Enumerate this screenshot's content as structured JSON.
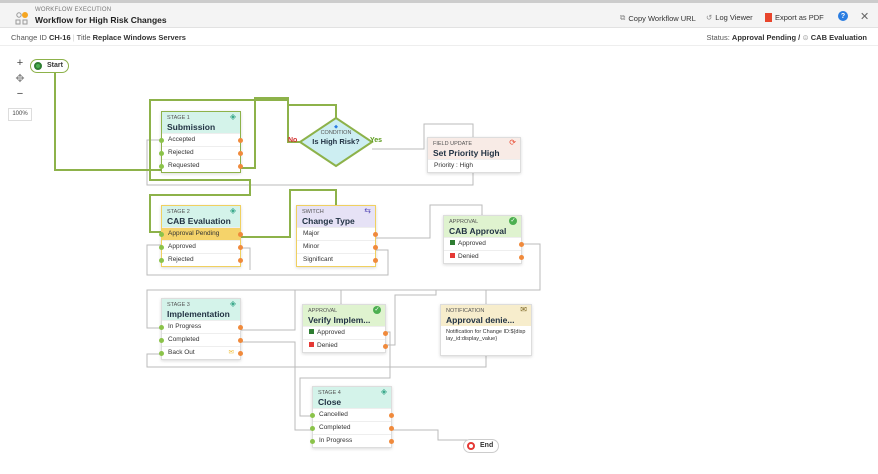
{
  "header": {
    "subtitle": "WORKFLOW EXECUTION",
    "title": "Workflow for High Risk Changes",
    "actions": [
      {
        "label": "Copy Workflow URL",
        "icon": "copy-icon"
      },
      {
        "label": "Log Viewer",
        "icon": "history-icon"
      },
      {
        "label": "Export as PDF",
        "icon": "pdf-icon"
      }
    ],
    "help_icon": "?",
    "close_icon": "✕"
  },
  "info": {
    "change_id_label": "Change ID",
    "change_id": "CH-16",
    "title_label": "Title",
    "title": "Replace Windows Servers",
    "status_label": "Status:",
    "status": "Approval Pending /",
    "stage": "CAB Evaluation"
  },
  "zoom": {
    "in": "+",
    "center": "✥",
    "out": "−",
    "level": "100%"
  },
  "nodes": {
    "start": "Start",
    "end": "End",
    "stage1": {
      "kind": "STAGE 1",
      "name": "Submission",
      "rows": [
        "Accepted",
        "Rejected",
        "Requested"
      ]
    },
    "condition": {
      "kind": "CONDITION",
      "name": "Is High Risk?",
      "no": "No",
      "yes": "Yes"
    },
    "field_update": {
      "kind": "FIELD UPDATE",
      "name": "Set Priority High",
      "detail": "Priority : High"
    },
    "stage2": {
      "kind": "STAGE 2",
      "name": "CAB Evaluation",
      "rows": [
        "Approval Pending",
        "Approved",
        "Rejected"
      ]
    },
    "switch": {
      "kind": "SWITCH",
      "name": "Change Type",
      "rows": [
        "Major",
        "Minor",
        "Significant"
      ]
    },
    "cab_approval": {
      "kind": "APPROVAL",
      "name": "CAB Approval",
      "rows": [
        "Approved",
        "Denied"
      ]
    },
    "stage3": {
      "kind": "STAGE 3",
      "name": "Implementation",
      "rows": [
        "In Progress",
        "Completed",
        "Back Out"
      ]
    },
    "verify": {
      "kind": "APPROVAL",
      "name": "Verify Implem...",
      "rows": [
        "Approved",
        "Denied"
      ]
    },
    "notification": {
      "kind": "NOTIFICATION",
      "name": "Approval denie...",
      "detail": "Notification for Change ID:${display_id:display_value}"
    },
    "stage4": {
      "kind": "STAGE 4",
      "name": "Close",
      "rows": [
        "Cancelled",
        "Completed",
        "In Progress"
      ]
    }
  },
  "colors": {
    "active_path": "#8db24a",
    "stage_header": "#d4f3ea",
    "approval_header": "#dff3cf",
    "switch_header": "#e6e2f6",
    "notification_header": "#f7edcc",
    "field_update_header": "#f8ebe6",
    "condition_fill": "#cdeef2",
    "pending_row": "#f5d36a"
  }
}
